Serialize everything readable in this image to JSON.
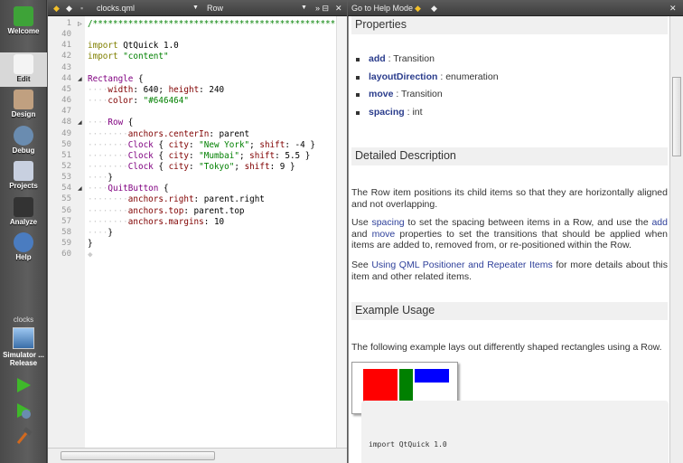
{
  "sidebar": {
    "modes": [
      {
        "label": "Welcome",
        "icon": "qt-logo-icon"
      },
      {
        "label": "Edit",
        "icon": "edit-icon",
        "active": true
      },
      {
        "label": "Design",
        "icon": "design-icon"
      },
      {
        "label": "Debug",
        "icon": "debug-icon"
      },
      {
        "label": "Projects",
        "icon": "projects-icon"
      },
      {
        "label": "Analyze",
        "icon": "analyze-icon"
      },
      {
        "label": "Help",
        "icon": "help-icon"
      }
    ],
    "project": "clocks",
    "target": "Simulator ...",
    "build": "Release"
  },
  "editor": {
    "file": "clocks.qml",
    "symbol": "Row",
    "lines": [
      {
        "n": "1",
        "fold": "▷",
        "seg": [
          [
            "/************************************************",
            "c"
          ]
        ]
      },
      {
        "n": "40",
        "seg": []
      },
      {
        "n": "41",
        "seg": [
          [
            "import",
            "k"
          ],
          [
            " QtQuick 1.0",
            ""
          ]
        ]
      },
      {
        "n": "42",
        "seg": [
          [
            "import",
            "k"
          ],
          [
            " ",
            ""
          ],
          [
            "\"content\"",
            "s"
          ]
        ]
      },
      {
        "n": "43",
        "seg": []
      },
      {
        "n": "44",
        "fold": "◢",
        "seg": [
          [
            "Rectangle",
            "t"
          ],
          [
            " {",
            ""
          ]
        ]
      },
      {
        "n": "45",
        "seg": [
          [
            "····",
            "d"
          ],
          [
            "width",
            "p"
          ],
          [
            ": 640; ",
            ""
          ],
          [
            "height",
            "p"
          ],
          [
            ": 240",
            ""
          ]
        ]
      },
      {
        "n": "46",
        "seg": [
          [
            "····",
            "d"
          ],
          [
            "color",
            "p"
          ],
          [
            ": ",
            ""
          ],
          [
            "\"#646464\"",
            "s"
          ]
        ]
      },
      {
        "n": "47",
        "seg": []
      },
      {
        "n": "48",
        "fold": "◢",
        "seg": [
          [
            "····",
            "d"
          ],
          [
            "Row",
            "t"
          ],
          [
            " {",
            ""
          ]
        ]
      },
      {
        "n": "49",
        "seg": [
          [
            "········",
            "d"
          ],
          [
            "anchors.centerIn",
            "p"
          ],
          [
            ": parent",
            ""
          ]
        ]
      },
      {
        "n": "50",
        "seg": [
          [
            "········",
            "d"
          ],
          [
            "Clock",
            "t"
          ],
          [
            " { ",
            ""
          ],
          [
            "city",
            "p"
          ],
          [
            ": ",
            ""
          ],
          [
            "\"New York\"",
            "s"
          ],
          [
            "; ",
            ""
          ],
          [
            "shift",
            "p"
          ],
          [
            ": -4 }",
            ""
          ]
        ]
      },
      {
        "n": "51",
        "seg": [
          [
            "········",
            "d"
          ],
          [
            "Clock",
            "t"
          ],
          [
            " { ",
            ""
          ],
          [
            "city",
            "p"
          ],
          [
            ": ",
            ""
          ],
          [
            "\"Mumbai\"",
            "s"
          ],
          [
            "; ",
            ""
          ],
          [
            "shift",
            "p"
          ],
          [
            ": 5.5 }",
            ""
          ]
        ]
      },
      {
        "n": "52",
        "seg": [
          [
            "········",
            "d"
          ],
          [
            "Clock",
            "t"
          ],
          [
            " { ",
            ""
          ],
          [
            "city",
            "p"
          ],
          [
            ": ",
            ""
          ],
          [
            "\"Tokyo\"",
            "s"
          ],
          [
            "; ",
            ""
          ],
          [
            "shift",
            "p"
          ],
          [
            ": 9 }",
            ""
          ]
        ]
      },
      {
        "n": "53",
        "seg": [
          [
            "····",
            "d"
          ],
          [
            "}",
            ""
          ]
        ]
      },
      {
        "n": "54",
        "fold": "◢",
        "seg": [
          [
            "····",
            "d"
          ],
          [
            "QuitButton",
            "t"
          ],
          [
            " {",
            ""
          ]
        ]
      },
      {
        "n": "55",
        "seg": [
          [
            "········",
            "d"
          ],
          [
            "anchors.right",
            "p"
          ],
          [
            ": parent.right",
            ""
          ]
        ]
      },
      {
        "n": "56",
        "seg": [
          [
            "········",
            "d"
          ],
          [
            "anchors.top",
            "p"
          ],
          [
            ": parent.top",
            ""
          ]
        ]
      },
      {
        "n": "57",
        "seg": [
          [
            "········",
            "d"
          ],
          [
            "anchors.margins",
            "p"
          ],
          [
            ": 10",
            ""
          ]
        ]
      },
      {
        "n": "58",
        "seg": [
          [
            "····",
            "d"
          ],
          [
            "}",
            ""
          ]
        ]
      },
      {
        "n": "59",
        "seg": [
          [
            "}",
            ""
          ]
        ]
      },
      {
        "n": "60",
        "seg": [
          [
            "◆",
            "d"
          ]
        ]
      }
    ]
  },
  "help": {
    "toolbar_label": "Go to Help Mode",
    "properties_title": "Properties",
    "properties": [
      {
        "name": "add",
        "type": "Transition"
      },
      {
        "name": "layoutDirection",
        "type": "enumeration"
      },
      {
        "name": "move",
        "type": "Transition"
      },
      {
        "name": "spacing",
        "type": "int"
      }
    ],
    "sep": " : ",
    "detailed_title": "Detailed Description",
    "p1": "The Row item positions its child items so that they are horizontally aligned and not overlapping.",
    "p2a": "Use ",
    "p2_link1": "spacing",
    "p2b": " to set the spacing between items in a Row, and use the ",
    "p2_link2": "add",
    "p2c": " and ",
    "p2_link3": "move",
    "p2d": " properties to set the transitions that should be applied when items are added to, removed from, or re-positioned within the Row.",
    "p3a": "See ",
    "p3_link": "Using QML Positioner and Repeater Items",
    "p3b": " for more details about this item and other related items.",
    "example_title": "Example Usage",
    "p4": "The following example lays out differently shaped rectangles using a Row.",
    "code": "import QtQuick 1.0",
    "demo_colors": [
      "#ff0000",
      "#008000",
      "#0000ff"
    ]
  }
}
